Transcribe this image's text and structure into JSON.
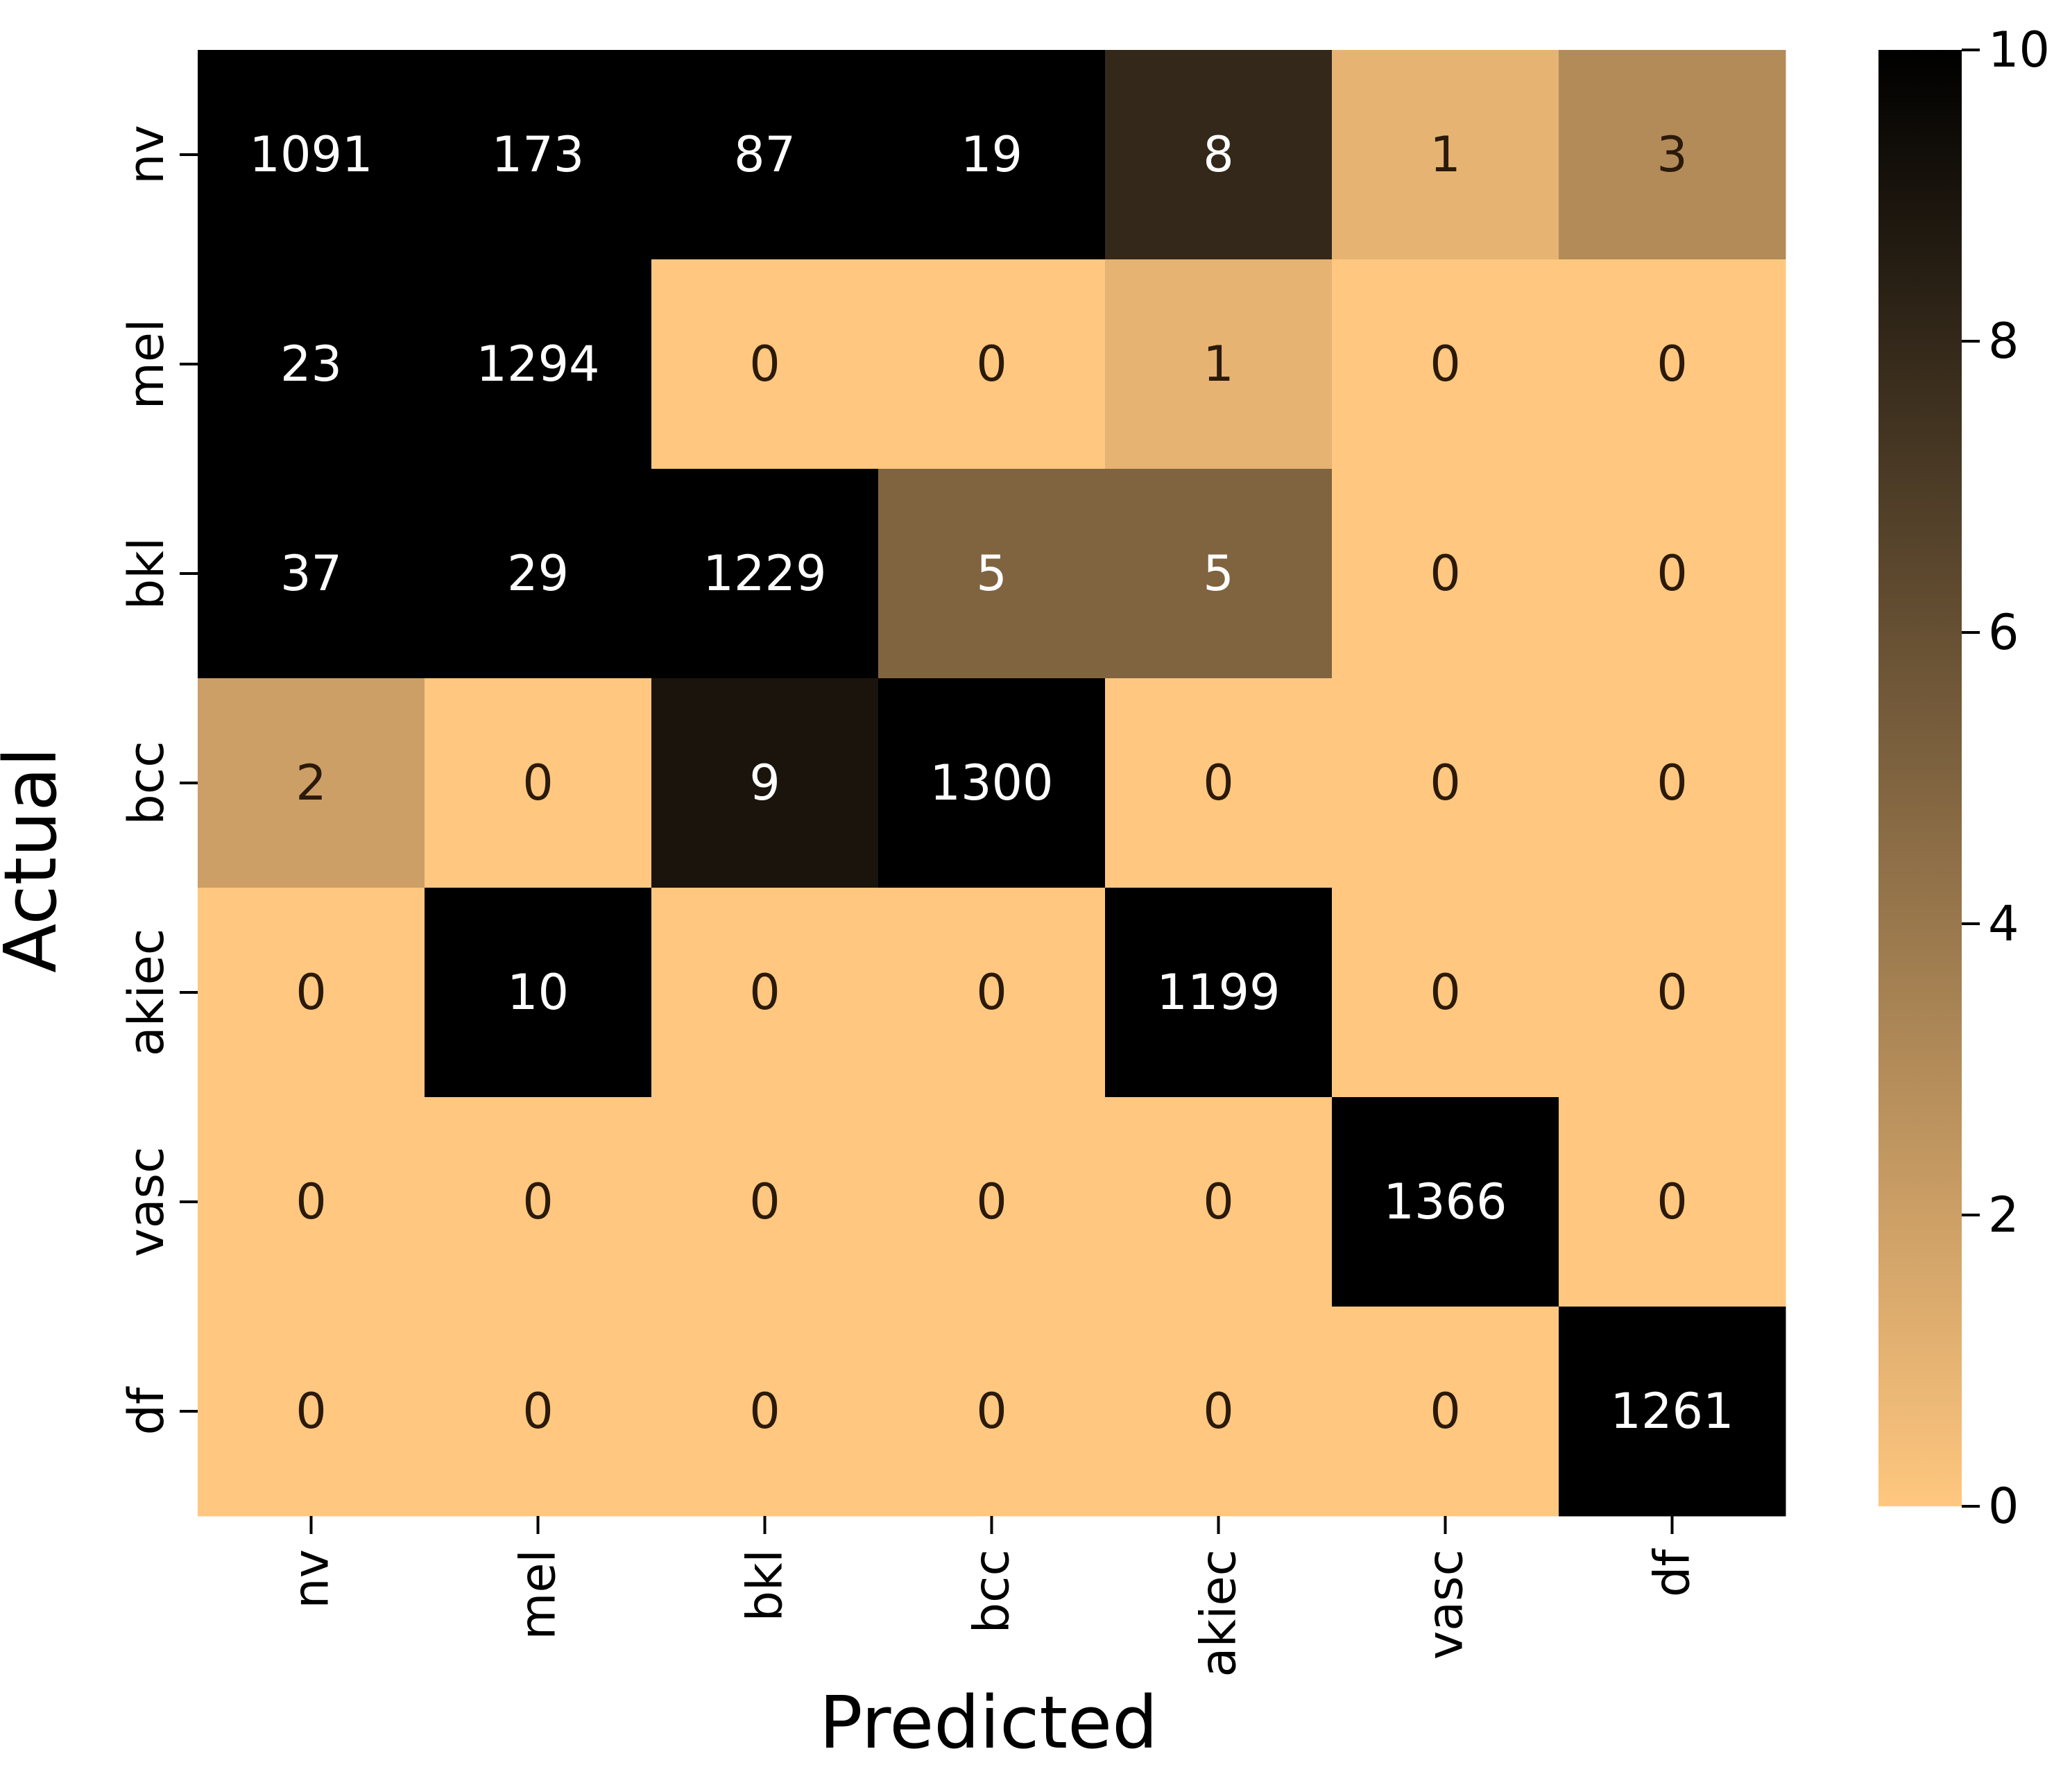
{
  "chart_data": {
    "type": "heatmap",
    "title": "",
    "xlabel": "Predicted",
    "ylabel": "Actual",
    "x_categories": [
      "nv",
      "mel",
      "bkl",
      "bcc",
      "akiec",
      "vasc",
      "df"
    ],
    "y_categories": [
      "nv",
      "mel",
      "bkl",
      "bcc",
      "akiec",
      "vasc",
      "df"
    ],
    "matrix": [
      [
        1091,
        173,
        87,
        19,
        8,
        1,
        3
      ],
      [
        23,
        1294,
        0,
        0,
        1,
        0,
        0
      ],
      [
        37,
        29,
        1229,
        5,
        5,
        0,
        0
      ],
      [
        2,
        0,
        9,
        1300,
        0,
        0,
        0
      ],
      [
        0,
        10,
        0,
        0,
        1199,
        0,
        0
      ],
      [
        0,
        0,
        0,
        0,
        0,
        1366,
        0
      ],
      [
        0,
        0,
        0,
        0,
        0,
        0,
        1261
      ]
    ],
    "color_range": [
      0,
      10
    ],
    "colorbar_ticks": [
      0,
      2,
      4,
      6,
      8,
      10
    ],
    "colormap": "copper_r",
    "colormap_low": "#ffc77f",
    "colormap_high": "#000000"
  }
}
